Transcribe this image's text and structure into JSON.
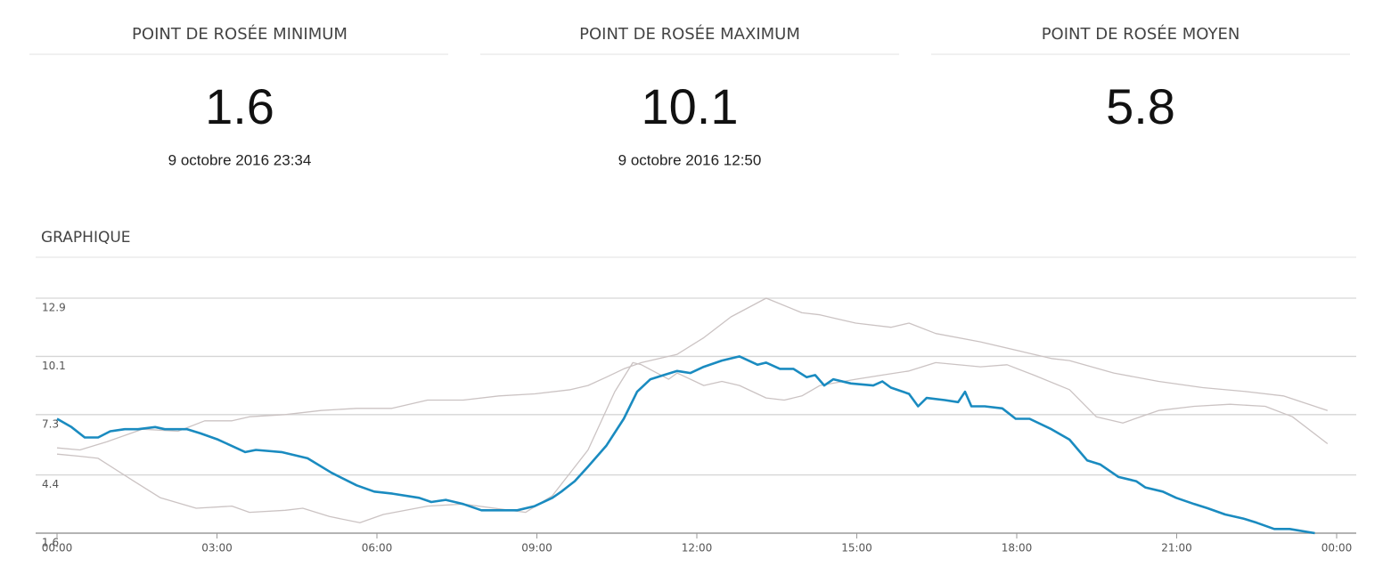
{
  "cards": [
    {
      "title": "POINT DE ROSÉE MINIMUM",
      "value": "1.6",
      "date": "9 octobre 2016 23:34"
    },
    {
      "title": "POINT DE ROSÉE MAXIMUM",
      "value": "10.1",
      "date": "9 octobre 2016 12:50"
    },
    {
      "title": "POINT DE ROSÉE MOYEN",
      "value": "5.8"
    }
  ],
  "chart_data": {
    "type": "line",
    "title": "GRAPHIQUE",
    "xlim": [
      0,
      24
    ],
    "xticks": [
      {
        "value": 0,
        "label": "00:00"
      },
      {
        "value": 3,
        "label": "03:00"
      },
      {
        "value": 6,
        "label": "06:00"
      },
      {
        "value": 9,
        "label": "09:00"
      },
      {
        "value": 12,
        "label": "12:00"
      },
      {
        "value": 15,
        "label": "15:00"
      },
      {
        "value": 18,
        "label": "18:00"
      },
      {
        "value": 21,
        "label": "21:00"
      },
      {
        "value": 24,
        "label": "00:00"
      }
    ],
    "ylim": [
      1.6,
      12.9
    ],
    "yticks": [
      1.6,
      4.4,
      7.3,
      10.1,
      12.9
    ],
    "grid": true,
    "series": [
      {
        "color": "#cbc3c3",
        "width": 1.3,
        "x": [
          0,
          0.43,
          0.94,
          1.6,
          2.27,
          2.77,
          3.28,
          3.61,
          4.28,
          4.95,
          5.62,
          6.28,
          6.95,
          7.62,
          8.29,
          8.96,
          9.63,
          9.96,
          10.3,
          10.63,
          10.96,
          11.63,
          12.13,
          12.64,
          13.3,
          13.97,
          14.31,
          14.64,
          14.98,
          15.64,
          15.98,
          16.48,
          17.32,
          18.15,
          18.65,
          18.99,
          19.82,
          20.66,
          21.49,
          22.33,
          23.0,
          23.83
        ],
        "values": [
          5.7,
          5.6,
          6.0,
          6.6,
          6.5,
          7.0,
          7.0,
          7.2,
          7.3,
          7.5,
          7.6,
          7.6,
          8.0,
          8.0,
          8.2,
          8.3,
          8.5,
          8.7,
          9.1,
          9.5,
          9.8,
          10.2,
          11.0,
          12.0,
          12.9,
          12.2,
          12.1,
          11.9,
          11.7,
          11.5,
          11.7,
          11.2,
          10.8,
          10.3,
          10.0,
          9.9,
          9.3,
          8.9,
          8.6,
          8.4,
          8.2,
          7.5
        ]
      },
      {
        "color": "#cbc3c3",
        "width": 1.3,
        "x": [
          0,
          0.43,
          0.77,
          1.44,
          1.94,
          2.61,
          3.28,
          3.61,
          4.28,
          4.61,
          5.11,
          5.68,
          6.12,
          6.95,
          7.62,
          8.79,
          9.29,
          9.96,
          10.46,
          10.8,
          10.96,
          11.47,
          11.63,
          12.13,
          12.47,
          12.8,
          13.3,
          13.64,
          13.97,
          14.31,
          14.98,
          15.48,
          15.98,
          16.48,
          17.32,
          17.82,
          18.32,
          18.99,
          19.49,
          19.99,
          20.66,
          21.33,
          22.0,
          22.66,
          23.17,
          23.83
        ],
        "values": [
          5.4,
          5.3,
          5.2,
          4.1,
          3.3,
          2.8,
          2.9,
          2.6,
          2.7,
          2.8,
          2.4,
          2.1,
          2.5,
          2.9,
          3.0,
          2.6,
          3.4,
          5.6,
          8.4,
          9.8,
          9.7,
          9.0,
          9.3,
          8.7,
          8.9,
          8.7,
          8.1,
          8.0,
          8.2,
          8.7,
          9.0,
          9.2,
          9.4,
          9.8,
          9.6,
          9.7,
          9.2,
          8.5,
          7.2,
          6.9,
          7.5,
          7.7,
          7.8,
          7.7,
          7.2,
          5.9
        ]
      },
      {
        "color": "#1a8bc0",
        "width": 2.6,
        "x": [
          0,
          0.27,
          0.52,
          0.77,
          1.0,
          1.27,
          1.52,
          1.84,
          2.02,
          2.44,
          2.69,
          3.02,
          3.53,
          3.73,
          4.21,
          4.7,
          5.15,
          5.62,
          5.95,
          6.29,
          6.79,
          7.02,
          7.29,
          7.62,
          7.96,
          8.29,
          8.63,
          8.96,
          9.29,
          9.46,
          9.71,
          9.96,
          10.3,
          10.63,
          10.88,
          11.13,
          11.38,
          11.63,
          11.88,
          12.13,
          12.47,
          12.8,
          13.14,
          13.3,
          13.56,
          13.81,
          14.06,
          14.22,
          14.39,
          14.56,
          14.89,
          15.31,
          15.48,
          15.64,
          15.98,
          16.15,
          16.31,
          16.65,
          16.9,
          17.03,
          17.15,
          17.4,
          17.73,
          17.98,
          18.24,
          18.65,
          18.99,
          19.32,
          19.57,
          19.91,
          20.24,
          20.41,
          20.74,
          20.99,
          21.33,
          21.58,
          21.91,
          22.25,
          22.5,
          22.83,
          23.12,
          23.59
        ],
        "values": [
          7.1,
          6.7,
          6.2,
          6.2,
          6.5,
          6.6,
          6.6,
          6.7,
          6.6,
          6.6,
          6.4,
          6.1,
          5.5,
          5.6,
          5.5,
          5.2,
          4.5,
          3.9,
          3.6,
          3.5,
          3.3,
          3.1,
          3.2,
          3.0,
          2.7,
          2.7,
          2.7,
          2.9,
          3.3,
          3.6,
          4.1,
          4.8,
          5.8,
          7.1,
          8.4,
          9.0,
          9.2,
          9.4,
          9.3,
          9.6,
          9.9,
          10.1,
          9.7,
          9.8,
          9.5,
          9.5,
          9.1,
          9.2,
          8.7,
          9.0,
          8.8,
          8.7,
          8.9,
          8.6,
          8.3,
          7.7,
          8.1,
          8.0,
          7.9,
          8.4,
          7.7,
          7.7,
          7.6,
          7.1,
          7.1,
          6.6,
          6.1,
          5.1,
          4.9,
          4.3,
          4.1,
          3.8,
          3.6,
          3.3,
          3.0,
          2.8,
          2.5,
          2.3,
          2.1,
          1.8,
          1.8,
          1.6
        ]
      }
    ]
  }
}
